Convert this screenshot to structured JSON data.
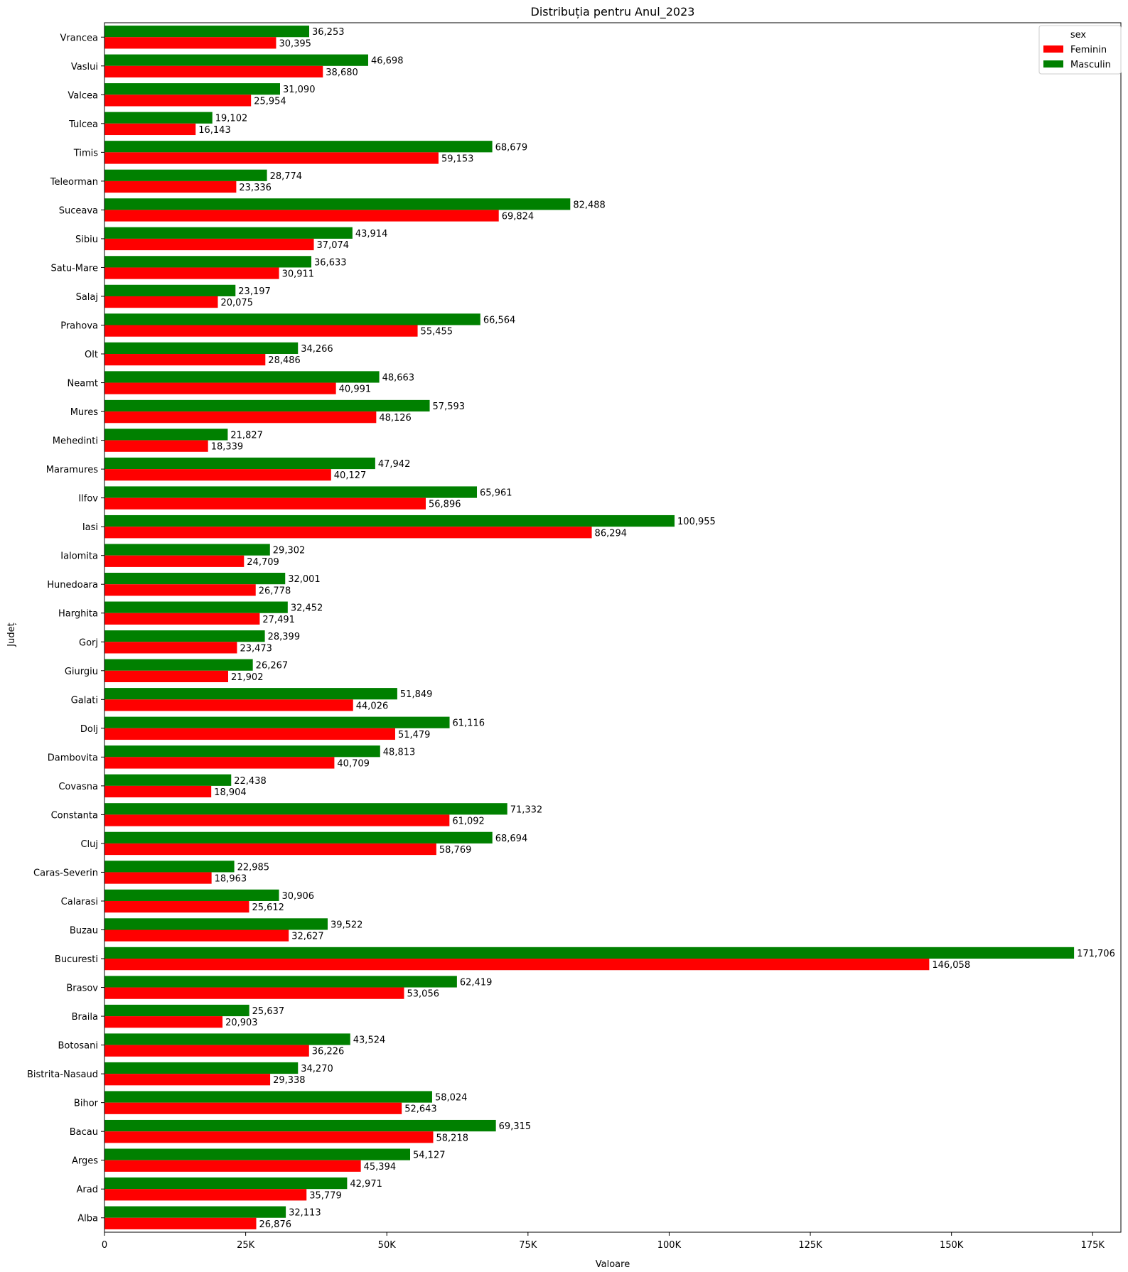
{
  "chart_data": {
    "type": "bar",
    "orientation": "horizontal",
    "title": "Distribuția pentru Anul_2023",
    "xlabel": "Valoare",
    "ylabel": "Județ",
    "xlim": [
      0,
      180000
    ],
    "x_ticks": [
      0,
      25000,
      50000,
      75000,
      100000,
      125000,
      150000,
      175000
    ],
    "x_tick_labels": [
      "0",
      "25K",
      "50K",
      "75K",
      "100K",
      "125K",
      "150K",
      "175K"
    ],
    "grid": false,
    "legend": {
      "title": "sex",
      "placement": "top-right"
    },
    "categories": [
      "Vrancea",
      "Vaslui",
      "Valcea",
      "Tulcea",
      "Timis",
      "Teleorman",
      "Suceava",
      "Sibiu",
      "Satu-Mare",
      "Salaj",
      "Prahova",
      "Olt",
      "Neamt",
      "Mures",
      "Mehedinti",
      "Maramures",
      "Ilfov",
      "Iasi",
      "Ialomita",
      "Hunedoara",
      "Harghita",
      "Gorj",
      "Giurgiu",
      "Galati",
      "Dolj",
      "Dambovita",
      "Covasna",
      "Constanta",
      "Cluj",
      "Caras-Severin",
      "Calarasi",
      "Buzau",
      "Bucuresti",
      "Brasov",
      "Braila",
      "Botosani",
      "Bistrita-Nasaud",
      "Bihor",
      "Bacau",
      "Arges",
      "Arad",
      "Alba"
    ],
    "series": [
      {
        "name": "Feminin",
        "color": "#ff0000",
        "values": [
          30395,
          38680,
          25954,
          16143,
          59153,
          23336,
          69824,
          37074,
          30911,
          20075,
          55455,
          28486,
          40991,
          48126,
          18339,
          40127,
          56896,
          86294,
          24709,
          26778,
          27491,
          23473,
          21902,
          44026,
          51479,
          40709,
          18904,
          61092,
          58769,
          18963,
          25612,
          32627,
          146058,
          53056,
          20903,
          36226,
          29338,
          52643,
          58218,
          45394,
          35779,
          26876
        ],
        "labels": [
          "30,395",
          "38,680",
          "25,954",
          "16,143",
          "59,153",
          "23,336",
          "69,824",
          "37,074",
          "30,911",
          "20,075",
          "55,455",
          "28,486",
          "40,991",
          "48,126",
          "18,339",
          "40,127",
          "56,896",
          "86,294",
          "24,709",
          "26,778",
          "27,491",
          "23,473",
          "21,902",
          "44,026",
          "51,479",
          "40,709",
          "18,904",
          "61,092",
          "58,769",
          "18,963",
          "25,612",
          "32,627",
          "146,058",
          "53,056",
          "20,903",
          "36,226",
          "29,338",
          "52,643",
          "58,218",
          "45,394",
          "35,779",
          "26,876"
        ]
      },
      {
        "name": "Masculin",
        "color": "#008000",
        "values": [
          36253,
          46698,
          31090,
          19102,
          68679,
          28774,
          82488,
          43914,
          36633,
          23197,
          66564,
          34266,
          48663,
          57593,
          21827,
          47942,
          65961,
          100955,
          29302,
          32001,
          32452,
          28399,
          26267,
          51849,
          61116,
          48813,
          22438,
          71332,
          68694,
          22985,
          30906,
          39522,
          171706,
          62419,
          25637,
          43524,
          34270,
          58024,
          69315,
          54127,
          42971,
          32113
        ],
        "labels": [
          "36,253",
          "46,698",
          "31,090",
          "19,102",
          "68,679",
          "28,774",
          "82,488",
          "43,914",
          "36,633",
          "23,197",
          "66,564",
          "34,266",
          "48,663",
          "57,593",
          "21,827",
          "47,942",
          "65,961",
          "100,955",
          "29,302",
          "32,001",
          "32,452",
          "28,399",
          "26,267",
          "51,849",
          "61,116",
          "48,813",
          "22,438",
          "71,332",
          "68,694",
          "22,985",
          "30,906",
          "39,522",
          "171,706",
          "62,419",
          "25,637",
          "43,524",
          "34,270",
          "58,024",
          "69,315",
          "54,127",
          "42,971",
          "32,113"
        ]
      }
    ]
  }
}
